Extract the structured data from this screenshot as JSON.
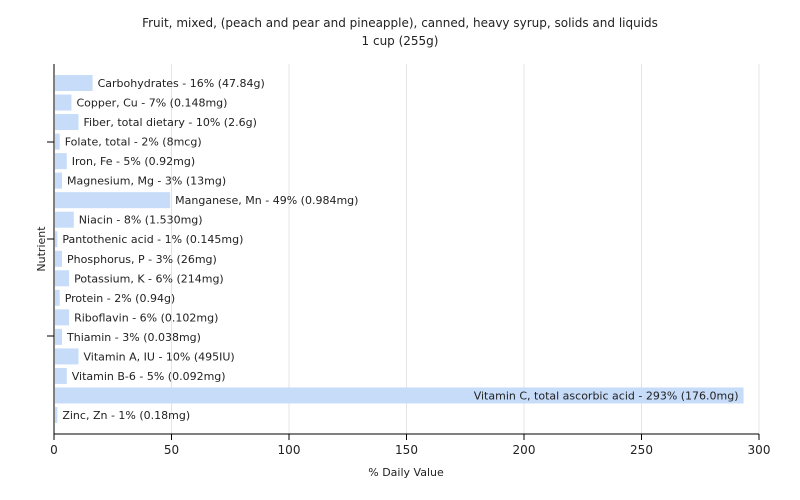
{
  "chart_data": {
    "type": "bar",
    "orientation": "horizontal",
    "title": "Fruit, mixed, (peach and pear and pineapple), canned, heavy syrup, solids and liquids",
    "subtitle": "1 cup (255g)",
    "xlabel": "% Daily Value",
    "ylabel": "Nutrient",
    "xlim": [
      0,
      300
    ],
    "xticks": [
      0,
      50,
      100,
      150,
      200,
      250,
      300
    ],
    "grid": true,
    "bar_color": "#c6dcf9",
    "categories": [
      "Carbohydrates",
      "Copper, Cu",
      "Fiber, total dietary",
      "Folate, total",
      "Iron, Fe",
      "Magnesium, Mg",
      "Manganese, Mn",
      "Niacin",
      "Pantothenic acid",
      "Phosphorus, P",
      "Potassium, K",
      "Protein",
      "Riboflavin",
      "Thiamin",
      "Vitamin A, IU",
      "Vitamin B-6",
      "Vitamin C, total ascorbic acid",
      "Zinc, Zn"
    ],
    "values": [
      16,
      7,
      10,
      2,
      5,
      3,
      49,
      8,
      1,
      3,
      6,
      2,
      6,
      3,
      10,
      5,
      293,
      1
    ],
    "labels": [
      "Carbohydrates - 16% (47.84g)",
      "Copper, Cu - 7% (0.148mg)",
      "Fiber, total dietary - 10% (2.6g)",
      "Folate, total - 2% (8mcg)",
      "Iron, Fe - 5% (0.92mg)",
      "Magnesium, Mg - 3% (13mg)",
      "Manganese, Mn - 49% (0.984mg)",
      "Niacin - 8% (1.530mg)",
      "Pantothenic acid - 1% (0.145mg)",
      "Phosphorus, P - 3% (26mg)",
      "Potassium, K - 6% (214mg)",
      "Protein - 2% (0.94g)",
      "Riboflavin - 6% (0.102mg)",
      "Thiamin - 3% (0.038mg)",
      "Vitamin A, IU - 10% (495IU)",
      "Vitamin B-6 - 5% (0.092mg)",
      "Vitamin C, total ascorbic acid - 293% (176.0mg)",
      "Zinc, Zn - 1% (0.18mg)"
    ]
  }
}
